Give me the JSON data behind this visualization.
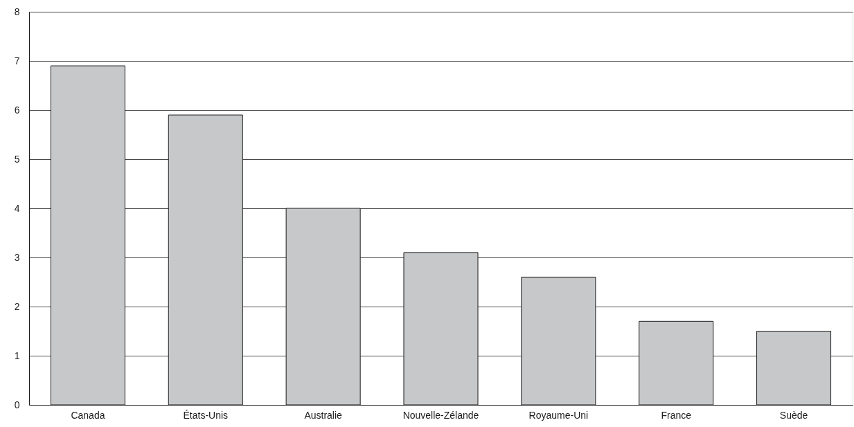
{
  "chart_data": {
    "type": "bar",
    "categories": [
      "Canada",
      "États-Unis",
      "Australie",
      "Nouvelle-Zélande",
      "Royaume-Uni",
      "France",
      "Suède"
    ],
    "values": [
      6.9,
      5.9,
      4.0,
      3.1,
      2.6,
      1.7,
      1.5
    ],
    "color": "#c7c8ca",
    "ylim": [
      0,
      8
    ],
    "yticks": [
      0,
      1,
      2,
      3,
      4,
      5,
      6,
      7,
      8
    ],
    "grid": "y"
  }
}
